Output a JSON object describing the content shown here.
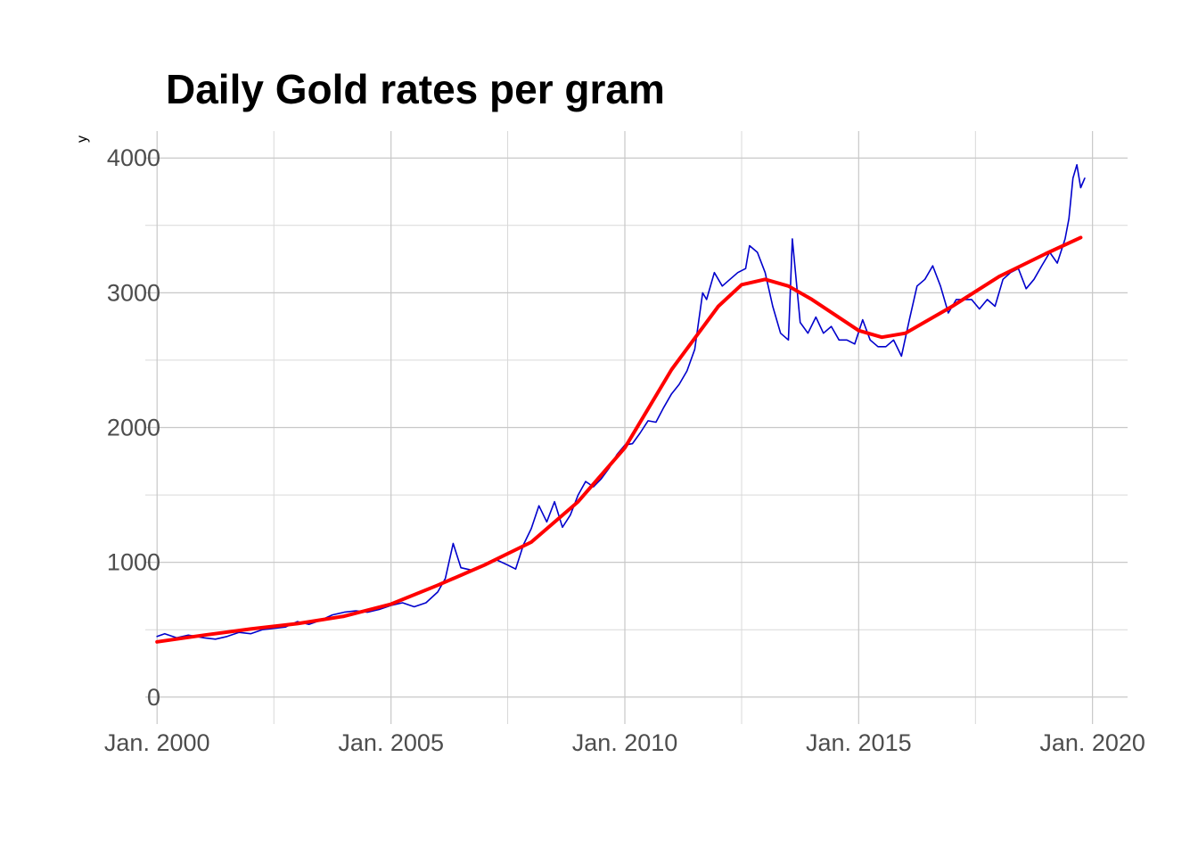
{
  "chart_data": {
    "type": "line",
    "title": "Daily Gold rates per gram",
    "xlabel": "",
    "ylabel": "y",
    "xlim": [
      "1999-10-01",
      "2020-10-01"
    ],
    "ylim": [
      -200,
      4200
    ],
    "x_ticks": [
      {
        "date": "2000-01-01",
        "label": "Jan. 2000"
      },
      {
        "date": "2005-01-01",
        "label": "Jan. 2005"
      },
      {
        "date": "2010-01-01",
        "label": "Jan. 2010"
      },
      {
        "date": "2015-01-01",
        "label": "Jan. 2015"
      },
      {
        "date": "2020-01-01",
        "label": "Jan. 2020"
      }
    ],
    "x_minor_ticks": [
      "2002-07-01",
      "2007-07-01",
      "2012-07-01",
      "2017-07-01"
    ],
    "y_ticks": [
      0,
      1000,
      2000,
      3000,
      4000
    ],
    "y_minor_ticks": [
      500,
      1500,
      2500,
      3500
    ],
    "grid": true,
    "legend": "none",
    "series": [
      {
        "style": "daily",
        "color": "#0000cc",
        "points": [
          [
            "2000-01-01",
            450
          ],
          [
            "2000-03-01",
            470
          ],
          [
            "2000-06-01",
            440
          ],
          [
            "2000-09-01",
            460
          ],
          [
            "2001-01-01",
            440
          ],
          [
            "2001-04-01",
            430
          ],
          [
            "2001-07-01",
            450
          ],
          [
            "2001-10-01",
            480
          ],
          [
            "2002-01-01",
            470
          ],
          [
            "2002-04-01",
            500
          ],
          [
            "2002-07-01",
            510
          ],
          [
            "2002-10-01",
            520
          ],
          [
            "2003-01-01",
            560
          ],
          [
            "2003-04-01",
            540
          ],
          [
            "2003-07-01",
            570
          ],
          [
            "2003-10-01",
            610
          ],
          [
            "2004-01-01",
            630
          ],
          [
            "2004-04-01",
            640
          ],
          [
            "2004-07-01",
            630
          ],
          [
            "2004-10-01",
            650
          ],
          [
            "2005-01-01",
            680
          ],
          [
            "2005-04-01",
            700
          ],
          [
            "2005-07-01",
            670
          ],
          [
            "2005-10-01",
            700
          ],
          [
            "2006-01-01",
            780
          ],
          [
            "2006-03-01",
            880
          ],
          [
            "2006-05-01",
            1140
          ],
          [
            "2006-07-01",
            960
          ],
          [
            "2006-10-01",
            940
          ],
          [
            "2007-01-01",
            980
          ],
          [
            "2007-04-01",
            1020
          ],
          [
            "2007-07-01",
            980
          ],
          [
            "2007-09-01",
            950
          ],
          [
            "2007-11-01",
            1130
          ],
          [
            "2008-01-01",
            1250
          ],
          [
            "2008-03-01",
            1420
          ],
          [
            "2008-05-01",
            1300
          ],
          [
            "2008-07-01",
            1450
          ],
          [
            "2008-09-01",
            1260
          ],
          [
            "2008-11-01",
            1350
          ],
          [
            "2009-01-01",
            1500
          ],
          [
            "2009-03-01",
            1600
          ],
          [
            "2009-05-01",
            1560
          ],
          [
            "2009-07-01",
            1620
          ],
          [
            "2009-09-01",
            1700
          ],
          [
            "2009-11-01",
            1800
          ],
          [
            "2010-01-01",
            1870
          ],
          [
            "2010-03-01",
            1880
          ],
          [
            "2010-05-01",
            1960
          ],
          [
            "2010-07-01",
            2050
          ],
          [
            "2010-09-01",
            2040
          ],
          [
            "2010-11-01",
            2150
          ],
          [
            "2011-01-01",
            2250
          ],
          [
            "2011-03-01",
            2320
          ],
          [
            "2011-05-01",
            2420
          ],
          [
            "2011-07-01",
            2580
          ],
          [
            "2011-09-01",
            3000
          ],
          [
            "2011-10-01",
            2950
          ],
          [
            "2011-12-01",
            3150
          ],
          [
            "2012-02-01",
            3050
          ],
          [
            "2012-04-01",
            3100
          ],
          [
            "2012-06-01",
            3150
          ],
          [
            "2012-08-01",
            3180
          ],
          [
            "2012-09-01",
            3350
          ],
          [
            "2012-11-01",
            3300
          ],
          [
            "2013-01-01",
            3150
          ],
          [
            "2013-03-01",
            2900
          ],
          [
            "2013-05-01",
            2700
          ],
          [
            "2013-07-01",
            2650
          ],
          [
            "2013-08-01",
            3400
          ],
          [
            "2013-10-01",
            2780
          ],
          [
            "2013-12-01",
            2700
          ],
          [
            "2014-02-01",
            2820
          ],
          [
            "2014-04-01",
            2700
          ],
          [
            "2014-06-01",
            2750
          ],
          [
            "2014-08-01",
            2650
          ],
          [
            "2014-10-01",
            2650
          ],
          [
            "2014-12-01",
            2620
          ],
          [
            "2015-02-01",
            2800
          ],
          [
            "2015-04-01",
            2650
          ],
          [
            "2015-06-01",
            2600
          ],
          [
            "2015-08-01",
            2600
          ],
          [
            "2015-10-01",
            2650
          ],
          [
            "2015-12-01",
            2530
          ],
          [
            "2016-02-01",
            2800
          ],
          [
            "2016-04-01",
            3050
          ],
          [
            "2016-06-01",
            3100
          ],
          [
            "2016-08-01",
            3200
          ],
          [
            "2016-10-01",
            3050
          ],
          [
            "2016-12-01",
            2850
          ],
          [
            "2017-02-01",
            2950
          ],
          [
            "2017-04-01",
            2950
          ],
          [
            "2017-06-01",
            2950
          ],
          [
            "2017-08-01",
            2880
          ],
          [
            "2017-10-01",
            2950
          ],
          [
            "2017-12-01",
            2900
          ],
          [
            "2018-02-01",
            3100
          ],
          [
            "2018-04-01",
            3150
          ],
          [
            "2018-06-01",
            3180
          ],
          [
            "2018-08-01",
            3030
          ],
          [
            "2018-10-01",
            3100
          ],
          [
            "2018-12-01",
            3200
          ],
          [
            "2019-02-01",
            3300
          ],
          [
            "2019-04-01",
            3220
          ],
          [
            "2019-06-01",
            3400
          ],
          [
            "2019-07-01",
            3550
          ],
          [
            "2019-08-01",
            3850
          ],
          [
            "2019-09-01",
            3950
          ],
          [
            "2019-10-01",
            3780
          ],
          [
            "2019-11-01",
            3850
          ]
        ]
      },
      {
        "style": "trend",
        "color": "#ff0000",
        "points": [
          [
            "2000-01-01",
            410
          ],
          [
            "2001-01-01",
            460
          ],
          [
            "2002-01-01",
            505
          ],
          [
            "2003-01-01",
            545
          ],
          [
            "2004-01-01",
            600
          ],
          [
            "2005-01-01",
            690
          ],
          [
            "2006-01-01",
            830
          ],
          [
            "2007-01-01",
            980
          ],
          [
            "2008-01-01",
            1150
          ],
          [
            "2009-01-01",
            1450
          ],
          [
            "2010-01-01",
            1850
          ],
          [
            "2011-01-01",
            2430
          ],
          [
            "2012-01-01",
            2900
          ],
          [
            "2012-07-01",
            3060
          ],
          [
            "2013-01-01",
            3100
          ],
          [
            "2013-07-01",
            3050
          ],
          [
            "2014-01-01",
            2950
          ],
          [
            "2015-01-01",
            2720
          ],
          [
            "2015-07-01",
            2670
          ],
          [
            "2016-01-01",
            2700
          ],
          [
            "2017-01-01",
            2900
          ],
          [
            "2018-01-01",
            3120
          ],
          [
            "2019-01-01",
            3290
          ],
          [
            "2019-10-01",
            3410
          ]
        ]
      }
    ]
  }
}
